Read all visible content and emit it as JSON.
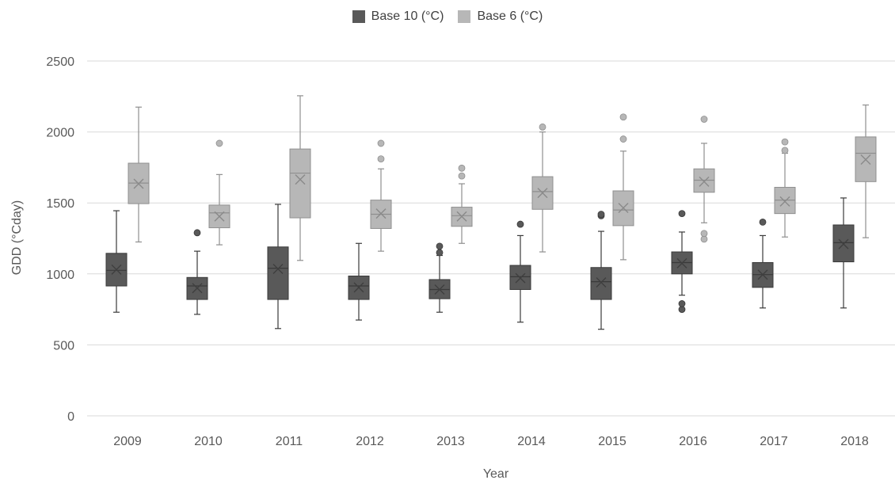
{
  "chart_data": {
    "type": "boxplot",
    "title": "",
    "xlabel": "Year",
    "ylabel": "GDD (°Cday)",
    "ylim": [
      0,
      2500
    ],
    "yticks": [
      0,
      500,
      1000,
      1500,
      2000,
      2500
    ],
    "grid": true,
    "legend_position": "top-center",
    "categories": [
      "2009",
      "2010",
      "2011",
      "2012",
      "2013",
      "2014",
      "2015",
      "2016",
      "2017",
      "2018"
    ],
    "series": [
      {
        "name": "Base 10 (°C)",
        "color": "#595959",
        "boxes": [
          {
            "min": 730,
            "q1": 915,
            "median": 1025,
            "q3": 1145,
            "max": 1445,
            "mean": 1030,
            "outliers": []
          },
          {
            "min": 715,
            "q1": 820,
            "median": 915,
            "q3": 975,
            "max": 1160,
            "mean": 900,
            "outliers": [
              1290
            ]
          },
          {
            "min": 615,
            "q1": 820,
            "median": 1040,
            "q3": 1190,
            "max": 1490,
            "mean": 1035,
            "outliers": []
          },
          {
            "min": 675,
            "q1": 820,
            "median": 915,
            "q3": 985,
            "max": 1215,
            "mean": 905,
            "outliers": []
          },
          {
            "min": 730,
            "q1": 825,
            "median": 890,
            "q3": 960,
            "max": 1130,
            "mean": 890,
            "outliers": [
              1150,
              1195
            ]
          },
          {
            "min": 660,
            "q1": 890,
            "median": 980,
            "q3": 1060,
            "max": 1270,
            "mean": 970,
            "outliers": [
              1350
            ]
          },
          {
            "min": 610,
            "q1": 820,
            "median": 945,
            "q3": 1045,
            "max": 1300,
            "mean": 940,
            "outliers": [
              1410,
              1420
            ]
          },
          {
            "min": 850,
            "q1": 1000,
            "median": 1080,
            "q3": 1155,
            "max": 1295,
            "mean": 1075,
            "outliers": [
              750,
              790,
              1425
            ]
          },
          {
            "min": 760,
            "q1": 905,
            "median": 995,
            "q3": 1080,
            "max": 1270,
            "mean": 995,
            "outliers": [
              1365
            ]
          },
          {
            "min": 760,
            "q1": 1085,
            "median": 1220,
            "q3": 1345,
            "max": 1535,
            "mean": 1210,
            "outliers": []
          }
        ]
      },
      {
        "name": "Base 6 (°C)",
        "color": "#b7b7b7",
        "boxes": [
          {
            "min": 1225,
            "q1": 1495,
            "median": 1640,
            "q3": 1780,
            "max": 2175,
            "mean": 1635,
            "outliers": []
          },
          {
            "min": 1205,
            "q1": 1325,
            "median": 1430,
            "q3": 1485,
            "max": 1700,
            "mean": 1405,
            "outliers": [
              1920
            ]
          },
          {
            "min": 1095,
            "q1": 1395,
            "median": 1710,
            "q3": 1880,
            "max": 2255,
            "mean": 1665,
            "outliers": []
          },
          {
            "min": 1160,
            "q1": 1320,
            "median": 1420,
            "q3": 1520,
            "max": 1740,
            "mean": 1425,
            "outliers": [
              1810,
              1920
            ]
          },
          {
            "min": 1215,
            "q1": 1335,
            "median": 1410,
            "q3": 1470,
            "max": 1635,
            "mean": 1405,
            "outliers": [
              1690,
              1745
            ]
          },
          {
            "min": 1155,
            "q1": 1455,
            "median": 1580,
            "q3": 1685,
            "max": 2000,
            "mean": 1570,
            "outliers": [
              2035
            ]
          },
          {
            "min": 1100,
            "q1": 1340,
            "median": 1450,
            "q3": 1585,
            "max": 1865,
            "mean": 1465,
            "outliers": [
              1950,
              2105
            ]
          },
          {
            "min": 1360,
            "q1": 1575,
            "median": 1660,
            "q3": 1740,
            "max": 1920,
            "mean": 1650,
            "outliers": [
              1245,
              1285,
              2090
            ]
          },
          {
            "min": 1260,
            "q1": 1425,
            "median": 1520,
            "q3": 1610,
            "max": 1850,
            "mean": 1510,
            "outliers": [
              1870,
              1930
            ]
          },
          {
            "min": 1255,
            "q1": 1650,
            "median": 1850,
            "q3": 1965,
            "max": 2190,
            "mean": 1805,
            "outliers": []
          }
        ]
      }
    ]
  }
}
